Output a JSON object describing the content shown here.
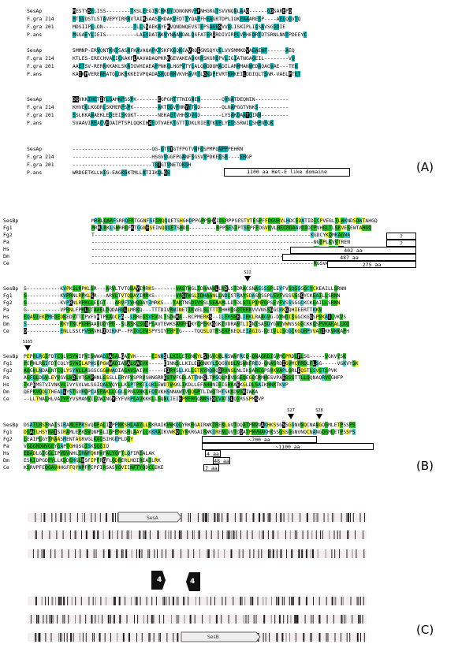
{
  "panelA": {
    "label": "(A)",
    "names": [
      "SesAp",
      "F.gra 214",
      "F.gra 201",
      "P.ans"
    ],
    "blocks": [
      {
        "rows": [
          "MESTYSELISS--------TKSLEEGIRCHKDYDDNGNRVPFNHGRGTSVVNQNLAAQ------GDSAREPQ",
          "MTSVDSTLSTAVEPYIRRRVTAIRSAASEHDAKVEDTTYQAPFHEAGRTDPLIQKPAAARESP----AELQGVTQ",
          "MDSIIPLLDN----------TLLSSAEKAYEKVQNDWQEVSTEPSAGEGVVDLISKIPLIGSAVSGGDIE",
          "MSGAEYLIEIS----------LAIVDATAKVYNAANDALQSFATERIRDIVIRPLVPHEDRTDTSRNLNNTPDEEYC"
        ]
      },
      {
        "rows": [
          "SMMNP-ERVQNTKNISASRFKAVAQAPKTSKFKGQKEAVRQEGNSQYVELVVSMMKDVAEAENF------AEQ",
          "KTLES-ERECHVAEICKAKFLAAVADAQPKRKGEVAKEAQKKRSKGRQPVLIGIATNGAGEIL--------VQ",
          "AAETSV-RERRKKAKLSKRIGVHIAEAPPNKGLHGPVTYLALQDDDQMADILARMMANWEDAQAGVAE---TEK",
          "KAIKPVERENRATQLDKRKKEIVPQADASRQDRMVKVHAVRTLGKDPEVRTNMKEILDDIQLTSNR-VAELPTET"
        ]
      },
      {
        "rows": [
          "DQVKKIHETITLSAMKPSSPK-------EGPGHTTTNIGNEN-------QYNATDEQNIN-----------",
          "KHVEGLKGDRLSKMERPSPK--------AKTDGVFNNYYTGD-------QLNAPGGTVNKS----------",
          "SSLKKAWAEKLEDEEISKQKT-------NEKAGTVHHSDVGD-------LYSAKDAATQINN---------",
          "SVAAVIREACVEDAIPTSPLQQKIHAEDTVAEKTGTTIDKLRIERTKVPLYEDSSRWILSHPNYQK"
        ]
      },
      {
        "rows": [
          "--------------------------QG-GTVTGTFPGTVNFQSPMPQNPPPEHRN",
          "--------------------------HSGVVGGFPGANFSGSVYPDKEGSR----EHGP",
          "--------------------------TGTGTVNETDKSH",
          "WRDGETKLLWIG-EAGKGKTMLLATIIKQLQS"
        ]
      }
    ],
    "annotation": "1100 aa Het-E like domaine"
  },
  "panelB": {
    "label": "(B)",
    "names": [
      "SesBp",
      "Fg1",
      "Fg2",
      "Pa",
      "Hs",
      "Dm",
      "Ce"
    ],
    "blocks": [
      {
        "rows": [
          "MRRLQARFSRRQFRTGGNFSEINQQQETSHGHDPPGPPSHDIDLRPPSESTVTESPFFDGVRVLHDCEDATIDICPVEGLTLWKNDSDWTAHGQ",
          "MRRLRKLSWRRQFKTGGNFSEINQQQETSHDG---------RPPSESIPTSEPFFDGVKVLHECRDAAVDIDCPVHGLTLSKVESEWTAHGQ",
          "T-----------------------------------------------------------------------KGDCYKQMKAGNA",
          "-------------------------------------------------------------------------NGDPLKVVTREN",
          "-------------------------------------------------------------------------MSAAPKSRQQDS",
          "-------------------------------------------------------------------------FSVCGSERRNQDT",
          "-------------------------------------------------------------------------RGSVAYSVRQKDS"
        ],
        "question_marks": [
          "?",
          "?"
        ],
        "boxes": [
          "402 aa",
          "487 aa",
          "275 aa"
        ]
      },
      {
        "marker": "S22",
        "rows": [
          "S-----------KVPKSLRPKLSR---ARVLTVTQDAYIMRKS-------VASTWGLIDHAANLLNDLSTDRACSNASSSSPLEVFVSQSSGGCYCKEAILLSRNN",
          "S-----------KVPRNLRPKLSR---ARVLTVTQDAYIMRKS-------VASTWGLIDHAANLLNDLSTRAYSDASSSSPLEVFVSSSGGCYCKEAILLSRNN",
          "G-----------KVPRNLRPKLLELGT---ARVFTVHQDAYIMRKS---TAKTNSDIVSSLSEAAMLLDTDLSTLPIMFGPSEVFVSSSGGCKCKEAILLSRNN",
          "G-----------VPRNLFPKLLTAAELDQDAHNLLMRKQ---TTTDIVRWINETIKVELSLTTTTHHRQGDTERNVVVNSSGGCKKGQHIEERTTKKN",
          "EQAVIEKPMEDEDKEDVTTCPVFVRTPKADCFA--LRREGSVEVDLTSDWRA--RCPMERKS--ILFRSNELIRKLRAAGVG-DVWDISGGCKGQSPVKAILVKVS",
          "S-----------KKYTNCPVHHAAVDDYPD--SLRSKLSGQPSAVTEWKSANFFTKYCPEKKGGKIVDRANTLIENISASDYGNDVWNSSGGCKKQSPVKAKALLKQ",
          "D-----------ENLLSSCPVHHVHLIDIKKP--FRIGLEWSPYSIYFHFTG----TQQSLQTRSERFKEQLEIAGIG-KEIVLISGGCKGQHPVVATIKKVNKAPH"
        ]
      },
      {
        "markers": [
          "S27",
          "S28"
        ],
        "pre_marker": "S165",
        "rows": [
          "PEPHLRGIFDTCQLYSYWIFYESWWADIASALGAIVK-----EINNSLLKILETONKYLSQGVQBLNSWNFREQ-QNAGRDIGVMCPRDLFLSG-----VGKVYSK",
          "PEPHLRGIFDTCQLYSYWILAPHSGPGWWADIASALGAIVK-----EINNSLLKILETONKYLSQGVOBLNSWNFREQ-QNAGRDIGVMCPRDLFLSG-----VGKVYSK",
          "AQGHLNDALNTCQLYSYWLLASGSCGGWWADIASAVSAIVK-----EIRYSLLKLLETKYRQRQBRVNSLNLIKSAREGPSMKVAPLGRLEQSTLSVSTSPVK",
          "AGFQLDGVLEYVGVLWDLVTGAPHNLGSSLLERYFVSPRVSHNGRRESTVFGDLATTNHSLTPGQLRDVSGEQEGQCRMHESVPAESSSTTLLQQNAQRVCGHFP",
          "TKPEMSTVIVNKVLIVYSVLWLSGIQALVQYLLKLPTPKTLQKLEWDTVKKLIKDLLEFAHNNIEIGRKAEKGLDLSAIKHNKTKVP",
          "QEPKVQQLTHEALLYSTGVRQPCASPAKLLGGLLPNLVNKLEQIVKHSNNAWTVQQGPTLIWQTHTSKKDVGRIWKA",
          "--LLTNALHLVAIVFYVSMANVILDWINGYEYFVRPLAVKKKLLGQNLIEIEPMFRGQNNSEQLVATSLQIRSSPMSVP"
        ]
      },
      {
        "rows": [
          "DSATLHSYNAISIRAMLEPKSVQNPALIGPPNKSHLAAYLLKKRAIKVWKQLYRKRGAIRWKIRENLGVTDQATPNVNAKHKSSGSSGGNVNQCNANGQGMLETPSSPS",
          "DSATLHSYNAISIRAMLEPKSVQNPALIGPPNKSHLAAYLLKKRAIKVWKQLYRKRGAIRWKIRENLGVTDQATPNVNAKHKSSGSSGGNVNQCNANGQGMLETPSSPS",
          "LEAIPLGYTRAASMENTAGRVGLKAQSIHGEPLDQY",
          "VGDGRDNVGEYGAPTGHQSGISKSQGIQ",
          "EBADLGIGGLIPVDVNHLIRNFQKRNFALYQFTLQFIREALAK",
          "ESKIDPGDPYLLKDDEHGLHSFIPFRGFLQDRERLHDIREAILRK",
          "KSRVPFEQGAVHHGFFQYNPFPIPFIRSASYGVIINFTYQDCLEKE"
        ],
        "boxes": [
          "~700 aa",
          "~1100 aa",
          "4 aa",
          "48 aa",
          "7 aa"
        ]
      }
    ]
  },
  "panelC": {
    "label": "(C)",
    "gene_a": "SesA",
    "gene_b": "SesB",
    "arrow_left": "4",
    "arrow_right": "4"
  }
}
